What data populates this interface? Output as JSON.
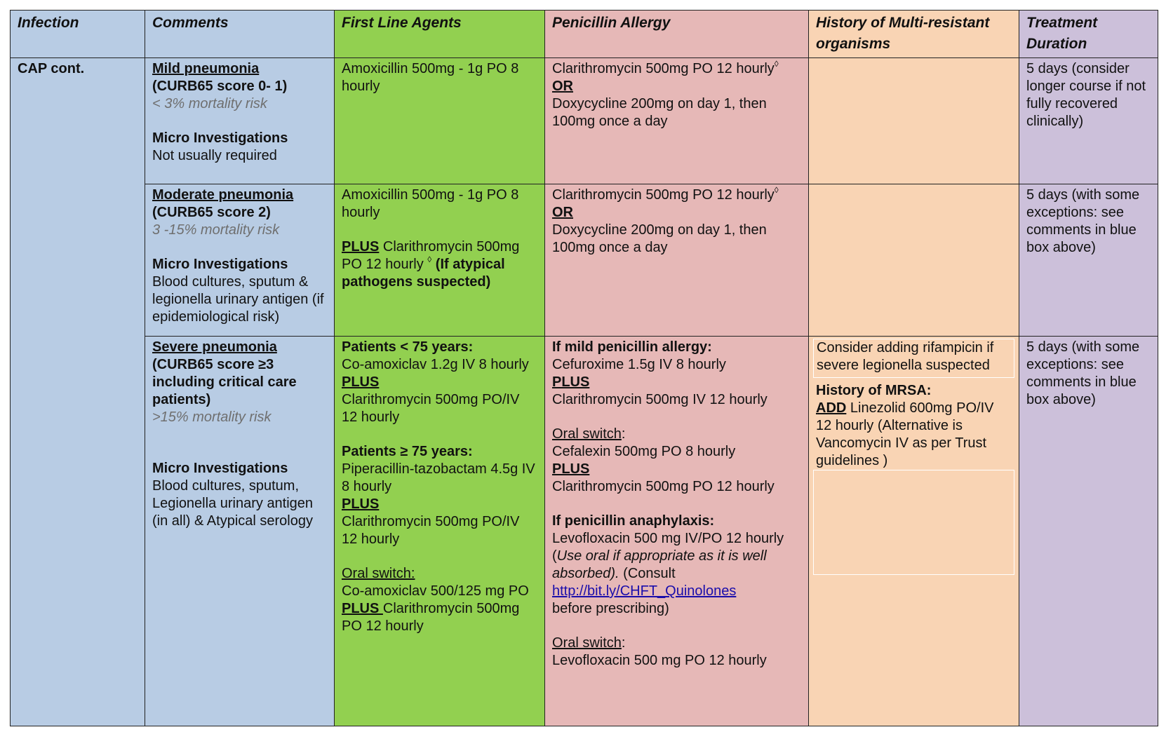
{
  "header": {
    "infection": "Infection",
    "comments": "Comments",
    "first_line": "First Line Agents",
    "penicillin": "Penicillin Allergy",
    "mdr": "History of Multi-resistant organisms",
    "duration": "Treatment Duration"
  },
  "infection_label": "CAP cont.",
  "colors": {
    "blue": "#b8cce4",
    "green": "#92d050",
    "pink": "#e6b8b7",
    "peach": "#f9d4b4",
    "lilac": "#ccc0da"
  },
  "mild": {
    "title": "Mild pneumonia",
    "score": "(CURB65 score 0- 1)",
    "risk": "< 3% mortality risk",
    "micro_head": "Micro Investigations",
    "micro_text": "Not usually required",
    "first_line": "Amoxicillin 500mg - 1g PO 8 hourly",
    "pen_line1": "Clarithromycin 500mg PO 12 hourly",
    "pen_sup": "◊",
    "pen_or": "OR",
    "pen_line2": "Doxycycline 200mg on day 1, then 100mg once a day",
    "duration": "5 days (consider longer course if not fully recovered clinically)"
  },
  "moderate": {
    "title": "Moderate pneumonia",
    "score": "(CURB65 score 2)",
    "risk": "3 -15% mortality risk",
    "micro_head": "Micro Investigations",
    "micro_text": "Blood cultures, sputum & legionella urinary antigen (if epidemiological risk)",
    "first_line": "Amoxicillin 500mg - 1g PO 8 hourly",
    "plus": "PLUS",
    "plus_text": " Clarithromycin 500mg PO 12 hourly ",
    "plus_sup": "◊",
    "plus_bold": " (If atypical pathogens suspected)",
    "pen_line1": "Clarithromycin 500mg PO 12 hourly",
    "pen_sup": "◊",
    "pen_or": "OR",
    "pen_line2": "Doxycycline 200mg on day 1, then 100mg once a day",
    "duration": "5 days (with some exceptions: see comments in blue box above)"
  },
  "severe": {
    "title": "Severe pneumonia",
    "score": "(CURB65 score ≥3 including critical care patients)",
    "risk": ">15% mortality risk",
    "micro_head": "Micro Investigations",
    "micro_text": "Blood cultures, sputum, Legionella urinary antigen (in all) & Atypical serology",
    "fl_under75_head": "Patients < 75 years:",
    "fl_under75_drug": "Co-amoxiclav 1.2g IV 8 hourly",
    "fl_plus1": "PLUS",
    "fl_under75_plus": "Clarithromycin 500mg PO/IV 12 hourly",
    "fl_over75_head": "Patients ≥ 75 years:",
    "fl_over75_drug": "Piperacillin-tazobactam 4.5g IV 8 hourly",
    "fl_plus2": "PLUS",
    "fl_over75_plus": "Clarithromycin 500mg PO/IV 12 hourly",
    "fl_oral_head": "Oral switch:",
    "fl_oral_drug": "Co-amoxiclav 500/125 mg PO",
    "fl_plus3": "PLUS ",
    "fl_oral_plus": "Clarithromycin 500mg PO 12 hourly",
    "pen_mild_head": "If mild penicillin allergy:",
    "pen_mild_drug": "Cefuroxime 1.5g IV 8 hourly",
    "pen_plus1": "PLUS",
    "pen_mild_plus": "Clarithromycin 500mg IV 12 hourly",
    "pen_oral1_head": "Oral switch",
    "pen_oral1_colon": ":",
    "pen_oral1_drug": "Cefalexin 500mg PO 8 hourly",
    "pen_plus2": "PLUS",
    "pen_oral1_plus": "Clarithromycin 500mg PO 12 hourly",
    "pen_anaph_head": "If penicillin anaphylaxis:",
    "pen_anaph_drug": "Levofloxacin 500 mg IV/PO 12 hourly",
    "pen_anaph_open": "(",
    "pen_anaph_italic": "Use oral if appropriate as it is well absorbed).",
    "pen_anaph_consult": " (Consult",
    "pen_link": "http://bit.ly/CHFT_Quinolones",
    "pen_before": "before prescribing)",
    "pen_oral2_head": "Oral switch",
    "pen_oral2_colon": ":",
    "pen_oral2_drug": "Levofloxacin 500 mg PO 12 hourly",
    "mdr_rif": "Consider adding rifampicin if severe legionella suspected",
    "mdr_mrsa_head": "History of MRSA:",
    "mdr_add": "ADD",
    "mdr_add_text": "  Linezolid 600mg PO/IV 12 hourly (Alternative is Vancomycin IV as per Trust guidelines )",
    "duration": "5 days (with some exceptions: see comments in blue box above)"
  }
}
